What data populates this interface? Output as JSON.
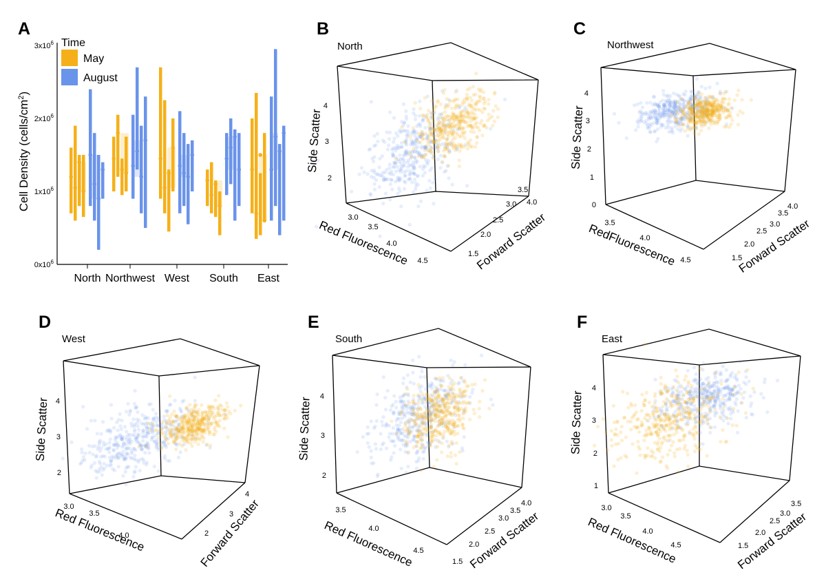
{
  "colors": {
    "may": "#f5b019",
    "august": "#6a93ea"
  },
  "chart_data": [
    {
      "panel": "A",
      "type": "bar",
      "description_kind": "stripe-distribution",
      "ylabel": "Cell Density (cells/cm",
      "ylabel_sup": "2",
      "ylabel_close": ")",
      "ylim": [
        0,
        3000000
      ],
      "yticks": [
        {
          "value": 0,
          "base": "0x10",
          "exp": "6"
        },
        {
          "value": 1000000,
          "base": "1x10",
          "exp": "6"
        },
        {
          "value": 2000000,
          "base": "2x10",
          "exp": "6"
        },
        {
          "value": 3000000,
          "base": "3x10",
          "exp": "6"
        }
      ],
      "categories": [
        "North",
        "Northwest",
        "West",
        "South",
        "East"
      ],
      "legend": {
        "title": "Time",
        "entries": [
          "May",
          "August"
        ]
      },
      "series": [
        {
          "name": "May",
          "groups": [
            {
              "medians": [
                1200000,
                1050000,
                1400000,
                1000000
              ],
              "ranges": [
                [
                  700000,
                  1600000
                ],
                [
                  600000,
                  1900000
                ],
                [
                  800000,
                  1500000
                ],
                [
                  650000,
                  1500000
                ]
              ]
            },
            {
              "medians": [
                1450000,
                1800000,
                1300000,
                1250000
              ],
              "ranges": [
                [
                  1000000,
                  1750000
                ],
                [
                  1200000,
                  2050000
                ],
                [
                  950000,
                  1450000
                ],
                [
                  1000000,
                  1750000
                ]
              ]
            },
            {
              "medians": [
                1450000,
                1050000,
                1250000,
                1600000
              ],
              "ranges": [
                [
                  900000,
                  2700000
                ],
                [
                  700000,
                  2250000
                ],
                [
                  450000,
                  1300000
                ],
                [
                  1000000,
                  2000000
                ]
              ]
            },
            {
              "medians": [
                1150000,
                950000,
                1100000,
                800000
              ],
              "ranges": [
                [
                  800000,
                  1300000
                ],
                [
                  700000,
                  1400000
                ],
                [
                  650000,
                  1150000
                ],
                [
                  400000,
                  1000000
                ]
              ]
            },
            {
              "medians": [
                1300000,
                700000,
                1500000,
                600000
              ],
              "ranges": [
                [
                  700000,
                  2000000
                ],
                [
                  350000,
                  2350000
                ],
                [
                  400000,
                  1250000
                ],
                [
                  600000,
                  1800000
                ]
              ]
            }
          ]
        },
        {
          "name": "August",
          "groups": [
            {
              "medians": [
                1500000,
                1100000,
                900000,
                1300000
              ],
              "ranges": [
                [
                  800000,
                  2400000
                ],
                [
                  600000,
                  1800000
                ],
                [
                  200000,
                  1500000
                ],
                [
                  900000,
                  1400000
                ]
              ]
            },
            {
              "medians": [
                1350000,
                1550000,
                1200000,
                1700000
              ],
              "ranges": [
                [
                  900000,
                  2050000
                ],
                [
                  1300000,
                  2700000
                ],
                [
                  700000,
                  1900000
                ],
                [
                  500000,
                  2300000
                ]
              ]
            },
            {
              "medians": [
                1350000,
                1250000,
                1200000,
                1500000
              ],
              "ranges": [
                [
                  700000,
                  2100000
                ],
                [
                  800000,
                  1800000
                ],
                [
                  550000,
                  1650000
                ],
                [
                  1000000,
                  1700000
                ]
              ]
            },
            {
              "medians": [
                1450000,
                1600000,
                1750000,
                1300000
              ],
              "ranges": [
                [
                  950000,
                  1800000
                ],
                [
                  1100000,
                  2000000
                ],
                [
                  600000,
                  1850000
                ],
                [
                  800000,
                  1800000
                ]
              ]
            },
            {
              "medians": [
                1300000,
                1750000,
                1550000,
                1800000
              ],
              "ranges": [
                [
                  600000,
                  2300000
                ],
                [
                  800000,
                  2950000
                ],
                [
                  400000,
                  1650000
                ],
                [
                  600000,
                  1900000
                ]
              ]
            }
          ]
        }
      ]
    },
    {
      "panel": "B",
      "type": "scatter",
      "subtitle": "North",
      "xlabel": "Red Fluorescence",
      "ylabel": "Forward Scatter",
      "zlabel": "Side Scatter",
      "xticks": [
        "3.0",
        "3.5",
        "4.0",
        "4.5"
      ],
      "yticks": [
        "1.5",
        "2.0",
        "2.5",
        "3.0",
        "3.5",
        "4.0"
      ],
      "zticks": [
        "2",
        "3",
        "4"
      ],
      "series": [
        {
          "name": "May",
          "center": [
            4.05,
            3.0,
            3.45
          ],
          "spread": [
            0.25,
            0.4,
            0.3
          ]
        },
        {
          "name": "August",
          "center": [
            3.5,
            2.6,
            3.0
          ],
          "spread": [
            0.35,
            0.45,
            0.45
          ]
        }
      ]
    },
    {
      "panel": "C",
      "type": "scatter",
      "subtitle": "Northwest",
      "xlabel": "RedFluorescence",
      "ylabel": "Forward Scatter",
      "zlabel": "Side Scatter",
      "xticks": [
        "3.5",
        "4.0",
        "4.5"
      ],
      "yticks": [
        "1.5",
        "2.0",
        "2.5",
        "3.0",
        "3.5",
        "4.0"
      ],
      "zticks": [
        "0",
        "1",
        "2",
        "3",
        "4"
      ],
      "series": [
        {
          "name": "May",
          "center": [
            4.05,
            3.1,
            3.2
          ],
          "spread": [
            0.2,
            0.35,
            0.25
          ]
        },
        {
          "name": "August",
          "center": [
            3.7,
            2.7,
            3.2
          ],
          "spread": [
            0.3,
            0.45,
            0.3
          ]
        }
      ]
    },
    {
      "panel": "D",
      "type": "scatter",
      "subtitle": "West",
      "xlabel": "Red Fluorescence",
      "ylabel": "Forward Scatter",
      "zlabel": "Side Scatter",
      "xticks": [
        "3.0",
        "3.5",
        "4.0"
      ],
      "yticks": [
        "2",
        "3",
        "4"
      ],
      "zticks": [
        "2",
        "3",
        "4"
      ],
      "series": [
        {
          "name": "May",
          "center": [
            4.2,
            3.6,
            3.3
          ],
          "spread": [
            0.2,
            0.35,
            0.25
          ]
        },
        {
          "name": "August",
          "center": [
            3.6,
            2.9,
            2.95
          ],
          "spread": [
            0.35,
            0.45,
            0.4
          ]
        }
      ]
    },
    {
      "panel": "E",
      "type": "scatter",
      "subtitle": "South",
      "xlabel": "Red Fluorescence",
      "ylabel": "Forward Scatter",
      "zlabel": "Side Scatter",
      "xticks": [
        "3.5",
        "4.0",
        "4.5"
      ],
      "yticks": [
        "1.5",
        "2.0",
        "2.5",
        "3.0",
        "3.5",
        "4.0"
      ],
      "zticks": [
        "2",
        "3",
        "4"
      ],
      "series": [
        {
          "name": "May",
          "center": [
            4.1,
            3.0,
            3.4
          ],
          "spread": [
            0.25,
            0.4,
            0.35
          ]
        },
        {
          "name": "August",
          "center": [
            3.85,
            2.7,
            3.4
          ],
          "spread": [
            0.35,
            0.45,
            0.4
          ]
        }
      ]
    },
    {
      "panel": "F",
      "type": "scatter",
      "subtitle": "East",
      "xlabel": "Red Fluorescence",
      "ylabel": "Forward Scatter",
      "zlabel": "Side Scatter",
      "xticks": [
        "3.0",
        "3.5",
        "4.0",
        "4.5"
      ],
      "yticks": [
        "1.5",
        "2.0",
        "2.5",
        "3.0",
        "3.5"
      ],
      "zticks": [
        "1",
        "2",
        "3",
        "4"
      ],
      "series": [
        {
          "name": "May",
          "center": [
            3.7,
            2.5,
            2.8
          ],
          "spread": [
            0.4,
            0.5,
            0.5
          ]
        },
        {
          "name": "August",
          "center": [
            4.1,
            2.9,
            3.4
          ],
          "spread": [
            0.3,
            0.4,
            0.35
          ]
        }
      ]
    }
  ]
}
